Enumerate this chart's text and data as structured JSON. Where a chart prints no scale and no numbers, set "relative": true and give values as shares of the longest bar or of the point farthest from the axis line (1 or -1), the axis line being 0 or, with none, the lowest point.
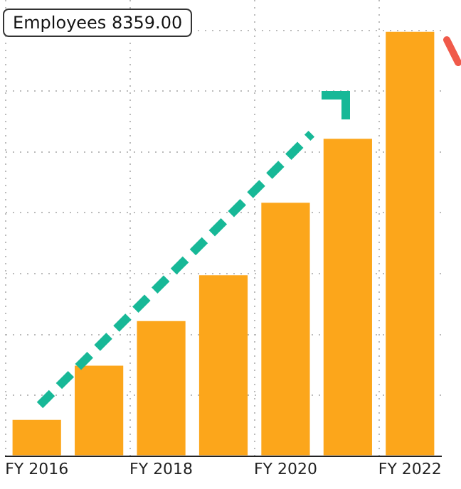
{
  "chart_data": {
    "type": "bar",
    "relative": true,
    "categories": [
      "FY 2016",
      null,
      "FY 2018",
      null,
      "FY 2020",
      null,
      "FY 2022"
    ],
    "values": [
      0.085,
      0.213,
      0.318,
      0.426,
      0.597,
      0.748,
      1
    ],
    "color": "#fca61b",
    "grid": true,
    "annotations": [
      "Employees 8359.00"
    ]
  }
}
